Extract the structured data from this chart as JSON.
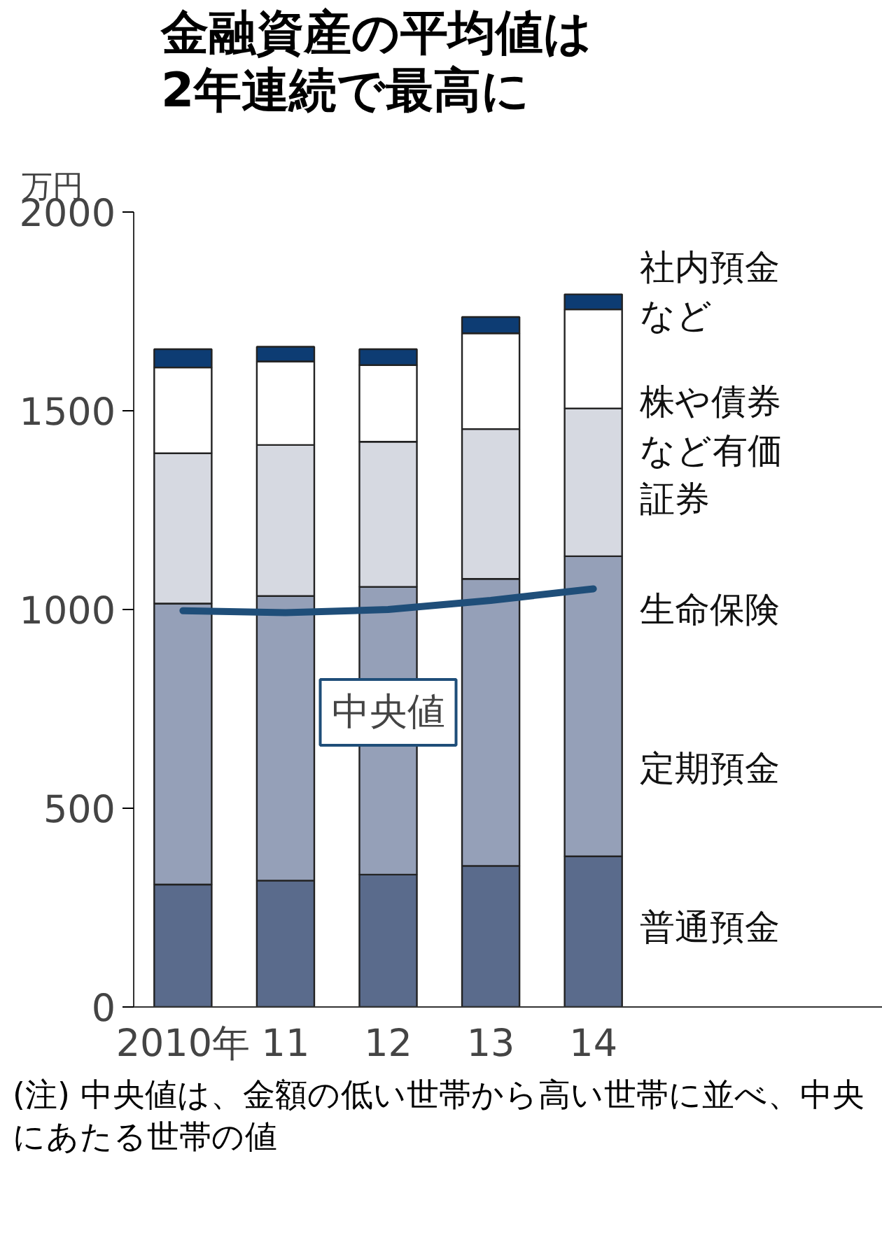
{
  "chart_data": {
    "type": "bar",
    "title": "金融資産の平均値は\n2年連続で最高に",
    "ylabel": "万円",
    "stacked": true,
    "categories": [
      "2010年",
      "11",
      "12",
      "13",
      "14"
    ],
    "series": [
      {
        "name": "普通預金",
        "color": "#5a6b8c",
        "values": [
          308,
          318,
          333,
          355,
          379
        ]
      },
      {
        "name": "定期預金",
        "color": "#95a0b8",
        "values": [
          707,
          716,
          724,
          722,
          755
        ]
      },
      {
        "name": "生命保険",
        "color": "#d6d9e1",
        "values": [
          378,
          380,
          365,
          377,
          372
        ]
      },
      {
        "name": "株や債券など有価証券",
        "color": "#ffffff",
        "values": [
          216,
          210,
          193,
          241,
          249
        ]
      },
      {
        "name": "社内預金など",
        "color": "#0d3c73",
        "values": [
          46,
          37,
          40,
          41,
          38
        ]
      },
      {
        "type": "line",
        "color": "#1f4e79",
        "values": [
          997,
          992,
          1000,
          1023,
          1052
        ]
      }
    ],
    "ylim": [
      0,
      2000
    ],
    "yticks": [
      0,
      500,
      1000,
      1500,
      2000
    ],
    "annotations": [
      {
        "text": "中央値",
        "x": "12",
        "y": 1000
      },
      "(注) 中央値は、金額の低い世帯から高い世帯に並べ、中央にあたる世帯の値"
    ]
  }
}
